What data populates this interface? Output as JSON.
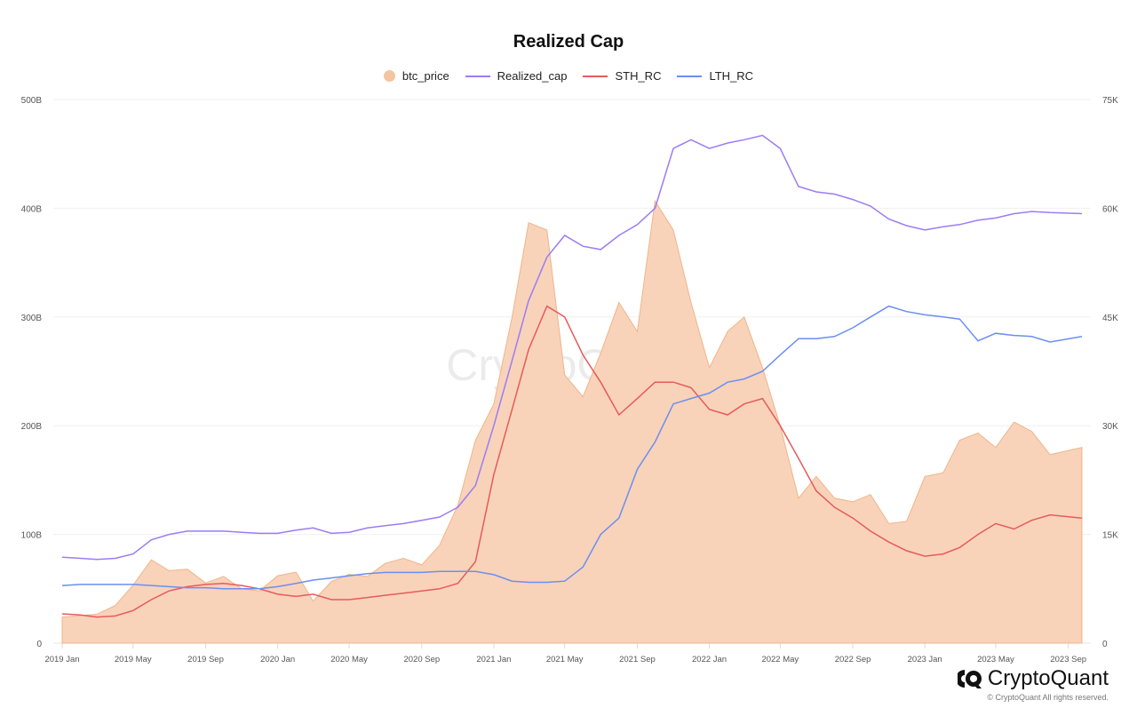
{
  "chart_data": {
    "type": "line",
    "title": "Realized Cap",
    "legend_position": "top",
    "grid": true,
    "x_ticks": [
      "2019 Jan",
      "2019 May",
      "2019 Sep",
      "2020 Jan",
      "2020 May",
      "2020 Sep",
      "2021 Jan",
      "2021 May",
      "2021 Sep",
      "2022 Jan",
      "2022 May",
      "2022 Sep",
      "2023 Jan",
      "2023 May",
      "2023 Sep"
    ],
    "x_tick_dates": [
      "2019-01-01",
      "2019-05-01",
      "2019-09-01",
      "2020-01-01",
      "2020-05-01",
      "2020-09-01",
      "2021-01-01",
      "2021-05-01",
      "2021-09-01",
      "2022-01-01",
      "2022-05-01",
      "2022-09-01",
      "2023-01-01",
      "2023-05-01",
      "2023-09-01"
    ],
    "xlim": [
      "2019-01-01",
      "2023-09-24"
    ],
    "y_left": {
      "ticks": [
        "0",
        "100B",
        "200B",
        "300B",
        "400B",
        "500B"
      ],
      "lim": [
        0,
        500
      ],
      "unit": "B"
    },
    "y_right": {
      "ticks": [
        "0",
        "15K",
        "30K",
        "45K",
        "60K",
        "75K"
      ],
      "lim": [
        0,
        75
      ],
      "unit": "K"
    },
    "dates": [
      "2019-01-01",
      "2019-02-01",
      "2019-03-01",
      "2019-04-01",
      "2019-05-01",
      "2019-06-01",
      "2019-07-01",
      "2019-08-01",
      "2019-09-01",
      "2019-10-01",
      "2019-11-01",
      "2019-12-01",
      "2020-01-01",
      "2020-02-01",
      "2020-03-01",
      "2020-04-01",
      "2020-05-01",
      "2020-06-01",
      "2020-07-01",
      "2020-08-01",
      "2020-09-01",
      "2020-10-01",
      "2020-11-01",
      "2020-12-01",
      "2021-01-01",
      "2021-02-01",
      "2021-03-01",
      "2021-04-01",
      "2021-05-01",
      "2021-06-01",
      "2021-07-01",
      "2021-08-01",
      "2021-09-01",
      "2021-10-01",
      "2021-11-01",
      "2021-12-01",
      "2022-01-01",
      "2022-02-01",
      "2022-03-01",
      "2022-04-01",
      "2022-05-01",
      "2022-06-01",
      "2022-07-01",
      "2022-08-01",
      "2022-09-01",
      "2022-10-01",
      "2022-11-01",
      "2022-12-01",
      "2023-01-01",
      "2023-02-01",
      "2023-03-01",
      "2023-04-01",
      "2023-05-01",
      "2023-06-01",
      "2023-07-01",
      "2023-08-01",
      "2023-09-24"
    ],
    "series": [
      {
        "name": "btc_price",
        "type": "area",
        "axis": "right",
        "color": "#f5c4a1",
        "values": [
          3.6,
          3.8,
          4.0,
          5.2,
          8.0,
          11.5,
          10.0,
          10.2,
          8.3,
          9.2,
          7.5,
          7.2,
          9.3,
          9.8,
          5.8,
          8.5,
          9.5,
          9.2,
          11.0,
          11.7,
          10.8,
          13.5,
          19.0,
          28.0,
          33.0,
          45.0,
          58.0,
          57.0,
          37.0,
          34.0,
          40.0,
          47.0,
          43.0,
          61.0,
          57.0,
          47.0,
          38.0,
          43.0,
          45.0,
          38.0,
          30.0,
          20.0,
          23.0,
          20.0,
          19.5,
          20.5,
          16.5,
          16.8,
          23.0,
          23.5,
          28.0,
          29.0,
          27.0,
          30.5,
          29.2,
          26.0,
          27.0
        ]
      },
      {
        "name": "Realized_cap",
        "type": "line",
        "axis": "left",
        "color": "#9b7cf4",
        "values": [
          79,
          78,
          77,
          78,
          82,
          95,
          100,
          103,
          103,
          103,
          102,
          101,
          101,
          104,
          106,
          101,
          102,
          106,
          108,
          110,
          113,
          116,
          125,
          145,
          200,
          260,
          315,
          355,
          375,
          365,
          362,
          375,
          385,
          400,
          455,
          463,
          455,
          460,
          463,
          467,
          455,
          420,
          415,
          413,
          408,
          402,
          390,
          384,
          380,
          383,
          385,
          389,
          391,
          395,
          397,
          396,
          395
        ]
      },
      {
        "name": "STH_RC",
        "type": "line",
        "axis": "left",
        "color": "#e85a5a",
        "values": [
          27,
          26,
          24,
          25,
          30,
          40,
          48,
          52,
          54,
          55,
          53,
          50,
          45,
          43,
          45,
          40,
          40,
          42,
          44,
          46,
          48,
          50,
          55,
          75,
          155,
          215,
          270,
          310,
          300,
          265,
          240,
          210,
          225,
          240,
          240,
          235,
          215,
          210,
          220,
          225,
          200,
          170,
          140,
          125,
          115,
          103,
          93,
          85,
          80,
          82,
          88,
          100,
          110,
          105,
          113,
          118,
          115
        ]
      },
      {
        "name": "LTH_RC",
        "type": "line",
        "axis": "left",
        "color": "#6b8ff0",
        "values": [
          53,
          54,
          54,
          54,
          54,
          53,
          52,
          51,
          51,
          50,
          50,
          50,
          52,
          55,
          58,
          60,
          62,
          64,
          65,
          65,
          65,
          66,
          66,
          66,
          63,
          57,
          56,
          56,
          57,
          70,
          100,
          115,
          160,
          185,
          220,
          225,
          230,
          240,
          243,
          250,
          265,
          280,
          280,
          282,
          290,
          300,
          310,
          305,
          302,
          300,
          298,
          278,
          285,
          283,
          282,
          277,
          282
        ]
      }
    ]
  },
  "watermark": "CryptoQuant",
  "brand": {
    "name": "CryptoQuant",
    "copyright": "© CryptoQuant All rights reserved."
  }
}
